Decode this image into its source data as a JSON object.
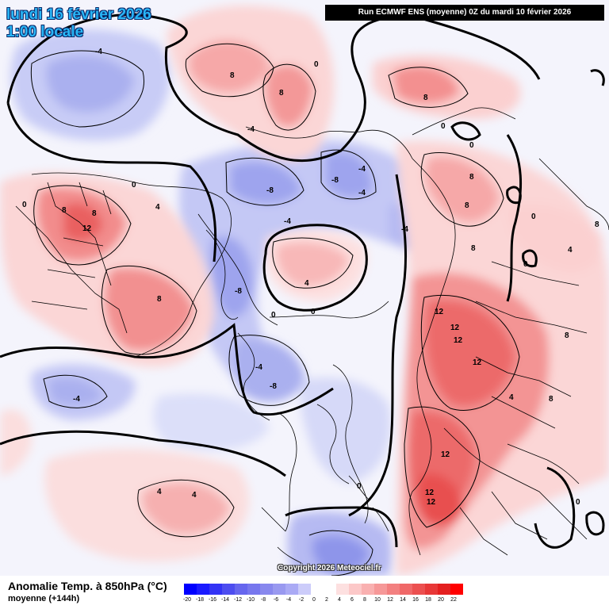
{
  "header": {
    "date_line": "lundi 16 février 2026",
    "time_line": "1:00 locale",
    "run_info": "Run ECMWF ENS (moyenne) 0Z du mardi 10 février 2026"
  },
  "footer": {
    "variable_title": "Anomalie Temp. à 850hPa (°C)",
    "variable_subtitle": "moyenne   (+144h)",
    "copyright": "Copyright 2026 Meteociel.fr"
  },
  "legend": {
    "values": [
      "-20",
      "-18",
      "-16",
      "-14",
      "-12",
      "-10",
      "-8",
      "-6",
      "-4",
      "-2",
      "0",
      "2",
      "4",
      "6",
      "8",
      "10",
      "12",
      "14",
      "16",
      "18",
      "20",
      "22"
    ],
    "colors": [
      "#0000ff",
      "#1a1aff",
      "#3333f5",
      "#4d4df0",
      "#6666ee",
      "#7777ee",
      "#8888ee",
      "#9999f0",
      "#aaaaf5",
      "#ccccfa",
      "#ffffff",
      "#ffffff",
      "#fde0e0",
      "#fcc8c8",
      "#f9b0b0",
      "#f69898",
      "#f38080",
      "#f06868",
      "#ec5050",
      "#e83838",
      "#e42020",
      "#ff0000"
    ]
  },
  "map_labels": [
    {
      "text": "-4"
    },
    {
      "text": "-4"
    },
    {
      "text": "-8"
    },
    {
      "text": "-8"
    },
    {
      "text": "-4"
    },
    {
      "text": "-4"
    },
    {
      "text": "-4"
    },
    {
      "text": "-8"
    },
    {
      "text": "-4"
    },
    {
      "text": "-8"
    },
    {
      "text": "-4"
    },
    {
      "text": "-4"
    },
    {
      "text": "0"
    },
    {
      "text": "0"
    },
    {
      "text": "0"
    },
    {
      "text": "0"
    },
    {
      "text": "0"
    },
    {
      "text": "0"
    },
    {
      "text": "0"
    },
    {
      "text": "0"
    },
    {
      "text": "0"
    },
    {
      "text": "0"
    },
    {
      "text": "0"
    },
    {
      "text": "4"
    },
    {
      "text": "4"
    },
    {
      "text": "4"
    },
    {
      "text": "4"
    },
    {
      "text": "4"
    },
    {
      "text": "4"
    },
    {
      "text": "8"
    },
    {
      "text": "8"
    },
    {
      "text": "8"
    },
    {
      "text": "8"
    },
    {
      "text": "8"
    },
    {
      "text": "8"
    },
    {
      "text": "8"
    },
    {
      "text": "8"
    },
    {
      "text": "8"
    },
    {
      "text": "8"
    },
    {
      "text": "8"
    },
    {
      "text": "8"
    },
    {
      "text": "12"
    },
    {
      "text": "12"
    },
    {
      "text": "12"
    },
    {
      "text": "12"
    },
    {
      "text": "12"
    },
    {
      "text": "12"
    },
    {
      "text": "12"
    },
    {
      "text": "12"
    }
  ]
}
